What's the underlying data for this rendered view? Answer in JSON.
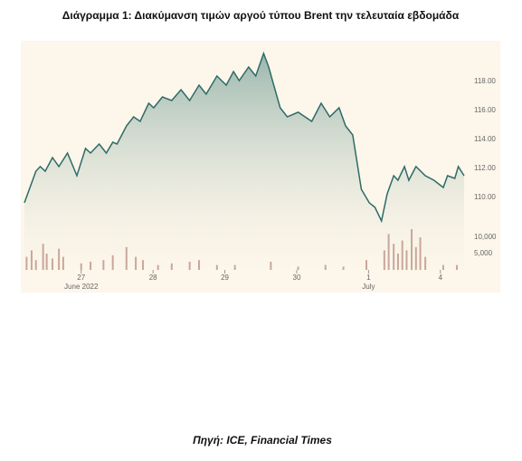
{
  "chart_data": [
    {
      "type": "area-line",
      "title": "Διάγραμμα 1: Διακύμανση τιμών αργού τύπου Brent την τελευταία εβδομάδα",
      "xlim": [
        -0.79,
        5.33
      ],
      "xticks": [
        {
          "value": 0,
          "label": "27"
        },
        {
          "value": 1,
          "label": "28"
        },
        {
          "value": 2,
          "label": "29"
        },
        {
          "value": 3,
          "label": "30"
        },
        {
          "value": 4,
          "label": "1"
        },
        {
          "value": 5,
          "label": "4"
        }
      ],
      "xticks2": [
        {
          "value": 0,
          "label": "June 2022"
        },
        {
          "value": 4,
          "label": "July"
        }
      ],
      "ylim": [
        105,
        120.5
      ],
      "yticks": [
        {
          "value": 110,
          "label": "110.00"
        },
        {
          "value": 112,
          "label": "112.00"
        },
        {
          "value": 114,
          "label": "114.00"
        },
        {
          "value": 116,
          "label": "116.00"
        },
        {
          "value": 118,
          "label": "118.00"
        }
      ],
      "series": [
        {
          "color": "#2d6b68",
          "x": [
            -0.79,
            -0.63,
            -0.57,
            -0.5,
            -0.4,
            -0.31,
            -0.19,
            -0.06,
            0.06,
            0.13,
            0.25,
            0.35,
            0.44,
            0.5,
            0.63,
            0.73,
            0.82,
            0.94,
            1.01,
            1.13,
            1.26,
            1.39,
            1.51,
            1.64,
            1.74,
            1.89,
            2.02,
            2.12,
            2.2,
            2.33,
            2.43,
            2.54,
            2.61,
            2.68,
            2.77,
            2.87,
            3.02,
            3.21,
            3.34,
            3.46,
            3.59,
            3.68,
            3.78,
            3.9,
            4.01,
            4.09,
            4.18,
            4.26,
            4.35,
            4.41,
            4.5,
            4.56,
            4.66,
            4.79,
            4.91,
            5.04,
            5.1,
            5.2,
            5.25,
            5.33
          ],
          "values": [
            109.63,
            111.81,
            112.13,
            111.81,
            112.75,
            112.13,
            113.06,
            111.5,
            113.38,
            113.06,
            113.69,
            113.06,
            113.81,
            113.69,
            114.94,
            115.56,
            115.25,
            116.5,
            116.19,
            116.94,
            116.69,
            117.44,
            116.69,
            117.75,
            117.13,
            118.38,
            117.75,
            118.69,
            118.06,
            119.0,
            118.38,
            119.94,
            119.0,
            117.75,
            116.19,
            115.56,
            115.88,
            115.25,
            116.5,
            115.56,
            116.19,
            114.94,
            114.31,
            110.56,
            109.63,
            109.31,
            108.38,
            110.25,
            111.5,
            111.19,
            112.13,
            111.19,
            112.13,
            111.5,
            111.19,
            110.69,
            111.5,
            111.31,
            112.13,
            111.5
          ]
        }
      ]
    },
    {
      "type": "bar",
      "xlim": [
        -0.79,
        5.33
      ],
      "ylim": [
        0,
        13000
      ],
      "yticks": [
        {
          "value": 5000,
          "label": "5,000"
        },
        {
          "value": 10000,
          "label": "10,000"
        }
      ],
      "color": "#c9a79a",
      "x": [
        -0.76,
        -0.69,
        -0.63,
        -0.53,
        -0.48,
        -0.4,
        -0.31,
        -0.25,
        0,
        0.13,
        0.31,
        0.44,
        0.63,
        0.76,
        0.86,
        1.07,
        1.26,
        1.51,
        1.64,
        1.89,
        2.14,
        2.64,
        3.02,
        3.4,
        3.65,
        3.97,
        4.22,
        4.28,
        4.35,
        4.41,
        4.47,
        4.53,
        4.6,
        4.66,
        4.72,
        4.79,
        5.04,
        5.23
      ],
      "values": [
        4000,
        6000,
        3000,
        8000,
        5000,
        3500,
        6500,
        4000,
        2000,
        2500,
        3000,
        4500,
        7000,
        4000,
        3000,
        1500,
        2000,
        2500,
        3000,
        1500,
        1500,
        2500,
        1000,
        1500,
        1000,
        3000,
        6000,
        11000,
        8000,
        5000,
        9000,
        6000,
        12500,
        7000,
        10000,
        4000,
        1500,
        1500
      ]
    }
  ],
  "source": "Πηγή: ICE, Financial Times"
}
